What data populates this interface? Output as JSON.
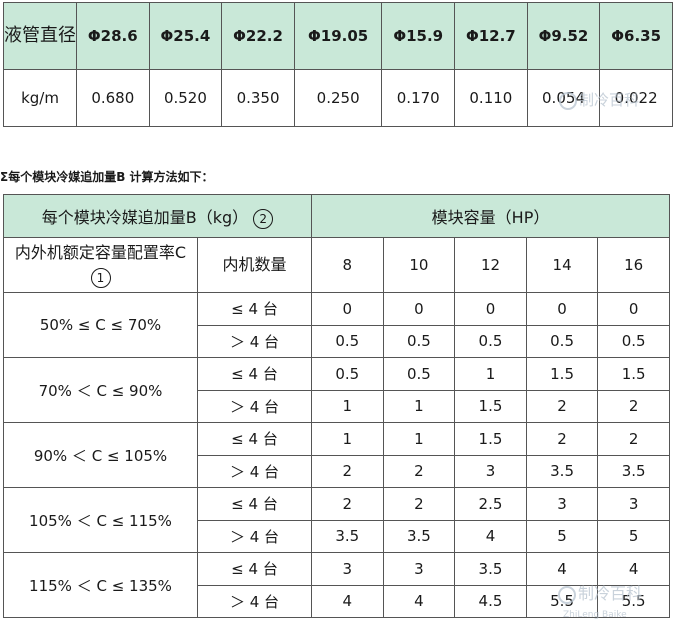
{
  "pipe_table": {
    "header_label": "液管直径",
    "diameters": [
      "Φ28.6",
      "Φ25.4",
      "Φ22.2",
      "Φ19.05",
      "Φ15.9",
      "Φ12.7",
      "Φ9.52",
      "Φ6.35"
    ],
    "unit": "kg/m",
    "values": [
      "0.680",
      "0.520",
      "0.350",
      "0.250",
      "0.170",
      "0.110",
      "0.054",
      "0.022"
    ]
  },
  "caption": "Σ每个模块冷媒追加量B 计算方法如下：",
  "module_table": {
    "corner_title": "每个模块冷媒追加量B（kg）",
    "corner_mark": "2",
    "capacity_title": "模块容量（HP）",
    "ratio_label": "内外机额定容量配置率C",
    "ratio_mark": "1",
    "indoor_count_label": "内机数量",
    "capacities": [
      "8",
      "10",
      "12",
      "14",
      "16"
    ],
    "groups": [
      {
        "range": "50% ≤ C ≤ 70%",
        "rows": [
          {
            "count": "≤ 4 台",
            "values": [
              "0",
              "0",
              "0",
              "0",
              "0"
            ]
          },
          {
            "count": "＞ 4 台",
            "values": [
              "0.5",
              "0.5",
              "0.5",
              "0.5",
              "0.5"
            ]
          }
        ]
      },
      {
        "range": "70% ＜ C ≤ 90%",
        "rows": [
          {
            "count": "≤ 4 台",
            "values": [
              "0.5",
              "0.5",
              "1",
              "1.5",
              "1.5"
            ]
          },
          {
            "count": "＞ 4 台",
            "values": [
              "1",
              "1",
              "1.5",
              "2",
              "2"
            ]
          }
        ]
      },
      {
        "range": "90% ＜ C ≤ 105%",
        "rows": [
          {
            "count": "≤ 4 台",
            "values": [
              "1",
              "1",
              "1.5",
              "2",
              "2"
            ]
          },
          {
            "count": "＞ 4 台",
            "values": [
              "2",
              "2",
              "3",
              "3.5",
              "3.5"
            ]
          }
        ]
      },
      {
        "range": "105% ＜ C ≤ 115%",
        "rows": [
          {
            "count": "≤ 4 台",
            "values": [
              "2",
              "2",
              "2.5",
              "3",
              "3"
            ]
          },
          {
            "count": "＞ 4 台",
            "values": [
              "3.5",
              "3.5",
              "4",
              "5",
              "5"
            ]
          }
        ]
      },
      {
        "range": "115% ＜ C ≤ 135%",
        "rows": [
          {
            "count": "≤ 4 台",
            "values": [
              "3",
              "3",
              "3.5",
              "4",
              "4"
            ]
          },
          {
            "count": "＞ 4 台",
            "values": [
              "4",
              "4",
              "4.5",
              "5.5",
              "5.5"
            ]
          }
        ]
      }
    ]
  },
  "watermarks": {
    "top": "制冷百科",
    "bottom": "制冷百科",
    "bottom_small": "ZhiLeng Baike"
  }
}
